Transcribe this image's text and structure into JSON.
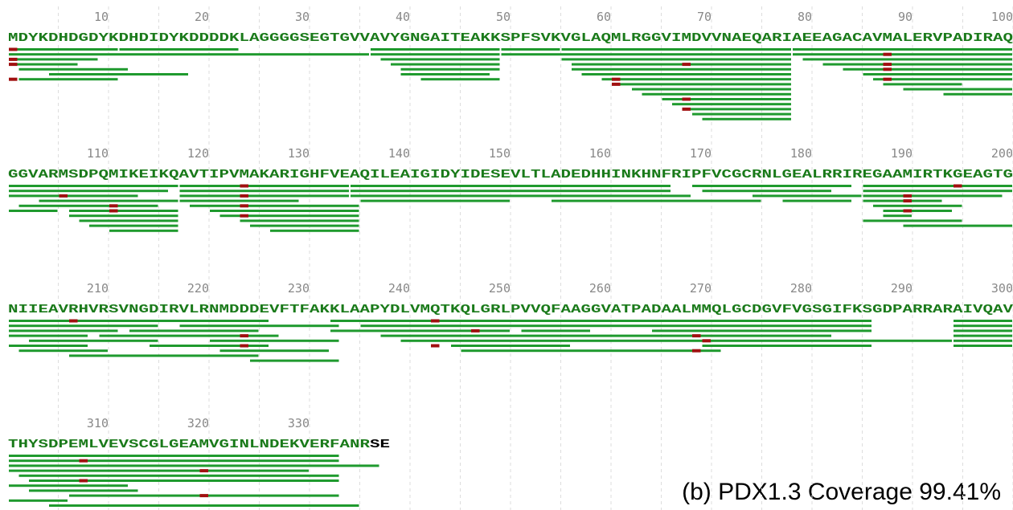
{
  "rows": [
    {
      "ticks": [
        10,
        20,
        30,
        40,
        50,
        60,
        70,
        80,
        90,
        100
      ],
      "sequence": "MDYKDHDGDYKDHDIDYKDDDDKLAGGGGSEGTGVVAVYGNGAITEAKKSPFSVKVGLAQMLRGGVIMDVVNAEQARIAEEAGACAVMALERVPADIRAQ"
    },
    {
      "ticks": [
        110,
        120,
        130,
        140,
        150,
        160,
        170,
        180,
        190,
        200
      ],
      "sequence": "GGVARMSDPQMIKEIKQAVTIPVMAKARIGHFVEAQILEAIGIDYIDESEVLTLADEDHHINKHNFRIPFVCGCRNLGEALRRIREGAAMIRTKGEAGTG"
    },
    {
      "ticks": [
        210,
        220,
        230,
        240,
        250,
        260,
        270,
        280,
        290,
        300
      ],
      "sequence": "NIIEAVRHVRSVNGDIRVLRNMDDDEVFTFAKKLAAPYDLVMQTKQLGRLPVVQFAAGGVATPADAALMMQLGCDGVFVGSGIFKSGDPARRARAIVQAV"
    },
    {
      "ticks": [
        310,
        320,
        330
      ],
      "sequence": "THYSDPEMLVEVSCGLGEAMVGINLNDEKVERFANR",
      "uncovered": "SE"
    }
  ],
  "peptides": [
    [
      1,
      11,
      1
    ],
    [
      12,
      23
    ],
    [
      1,
      36
    ],
    [
      1,
      9,
      1
    ],
    [
      1,
      7,
      1
    ],
    [
      2,
      12
    ],
    [
      5,
      18
    ],
    [
      2,
      11,
      1
    ],
    [
      37,
      49
    ],
    [
      37,
      49
    ],
    [
      38,
      49
    ],
    [
      39,
      49
    ],
    [
      40,
      49
    ],
    [
      40,
      48
    ],
    [
      42,
      49
    ],
    [
      50,
      55
    ],
    [
      50,
      78
    ],
    [
      56,
      78
    ],
    [
      56,
      78
    ],
    [
      57,
      78,
      68
    ],
    [
      57,
      78
    ],
    [
      58,
      78
    ],
    [
      60,
      78,
      61
    ],
    [
      61,
      78,
      61
    ],
    [
      63,
      78
    ],
    [
      64,
      78
    ],
    [
      66,
      78,
      68
    ],
    [
      67,
      78
    ],
    [
      68,
      78,
      68
    ],
    [
      69,
      78
    ],
    [
      70,
      78
    ],
    [
      79,
      100
    ],
    [
      79,
      100,
      88
    ],
    [
      80,
      100
    ],
    [
      82,
      100,
      88
    ],
    [
      84,
      100,
      88
    ],
    [
      86,
      100
    ],
    [
      87,
      100,
      88
    ],
    [
      88,
      95
    ],
    [
      90,
      100
    ],
    [
      94,
      100
    ],
    [
      101,
      117
    ],
    [
      101,
      116
    ],
    [
      101,
      113,
      106
    ],
    [
      104,
      117
    ],
    [
      102,
      115,
      111
    ],
    [
      101,
      105
    ],
    [
      107,
      117,
      111
    ],
    [
      107,
      117
    ],
    [
      108,
      117
    ],
    [
      109,
      117
    ],
    [
      111,
      117
    ],
    [
      118,
      134,
      124
    ],
    [
      118,
      134
    ],
    [
      118,
      134,
      124
    ],
    [
      118,
      129
    ],
    [
      119,
      135,
      124
    ],
    [
      121,
      135
    ],
    [
      122,
      135,
      124
    ],
    [
      124,
      135
    ],
    [
      125,
      135
    ],
    [
      127,
      135
    ],
    [
      135,
      166
    ],
    [
      135,
      166
    ],
    [
      135,
      168
    ],
    [
      136,
      150
    ],
    [
      155,
      175
    ],
    [
      169,
      184
    ],
    [
      170,
      182
    ],
    [
      175,
      185
    ],
    [
      178,
      184
    ],
    [
      186,
      200,
      195
    ],
    [
      186,
      200
    ],
    [
      186,
      199,
      190
    ],
    [
      186,
      193,
      190
    ],
    [
      187,
      195
    ],
    [
      188,
      194,
      190
    ],
    [
      188,
      190
    ],
    [
      186,
      195
    ],
    [
      190,
      200
    ],
    [
      201,
      226,
      207
    ],
    [
      201,
      215
    ],
    [
      201,
      211
    ],
    [
      201,
      208
    ],
    [
      203,
      215
    ],
    [
      201,
      208
    ],
    [
      202,
      210
    ],
    [
      207,
      225
    ],
    [
      210,
      227,
      224
    ],
    [
      213,
      225
    ],
    [
      215,
      226,
      224
    ],
    [
      218,
      233
    ],
    [
      221,
      233
    ],
    [
      222,
      232
    ],
    [
      225,
      233
    ],
    [
      233,
      286,
      243
    ],
    [
      233,
      250,
      247
    ],
    [
      236,
      286
    ],
    [
      238,
      282,
      269
    ],
    [
      240,
      294,
      270
    ],
    [
      245,
      256,
      243
    ],
    [
      252,
      258
    ],
    [
      246,
      271,
      269
    ],
    [
      265,
      286
    ],
    [
      270,
      286
    ],
    [
      295,
      300
    ],
    [
      295,
      300
    ],
    [
      295,
      300
    ],
    [
      295,
      300
    ],
    [
      295,
      300
    ],
    [
      295,
      300
    ],
    [
      301,
      333
    ],
    [
      301,
      333,
      308
    ],
    [
      301,
      337
    ],
    [
      301,
      330,
      320
    ],
    [
      302,
      333
    ],
    [
      303,
      333,
      308
    ],
    [
      301,
      312
    ],
    [
      303,
      313
    ],
    [
      307,
      333,
      320
    ],
    [
      301,
      306
    ],
    [
      305,
      335
    ]
  ],
  "caption": "(b) PDX1.3 Coverage 99.41%"
}
